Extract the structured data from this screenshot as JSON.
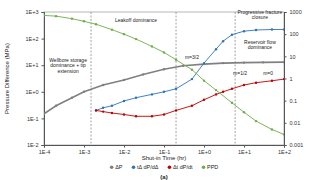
{
  "chart_data": {
    "type": "line",
    "x_label": "Shut-in Time (hr)",
    "y_label": "Pressure Difference (MPa)",
    "caption": "(a)",
    "log": true,
    "grid": false,
    "legend": "bottom",
    "xlim": [
      0.0001,
      100
    ],
    "xticks": [
      {
        "value": 0.0001,
        "label": "1E-4"
      },
      {
        "value": 0.001,
        "label": "1E-3"
      },
      {
        "value": 0.01,
        "label": "1E-2"
      },
      {
        "value": 0.1,
        "label": "1E-1"
      },
      {
        "value": 1,
        "label": "1E+0"
      },
      {
        "value": 10,
        "label": "1E+1"
      },
      {
        "value": 100,
        "label": "1E+2"
      }
    ],
    "ylim": [
      0.01,
      1000
    ],
    "yticks": [
      {
        "value": 0.01,
        "label": "1E-2"
      },
      {
        "value": 0.1,
        "label": "1E-1"
      },
      {
        "value": 1,
        "label": "1E+0"
      },
      {
        "value": 10,
        "label": "1E+1"
      },
      {
        "value": 100,
        "label": "1E+2"
      },
      {
        "value": 1000,
        "label": "1E+3"
      }
    ],
    "y2lim": [
      0.001,
      1000
    ],
    "y2ticks": [
      0.001,
      0.01,
      0.1,
      1,
      10,
      100,
      1000
    ],
    "vlines": [
      0.0015,
      0.2,
      6
    ],
    "annotations": [
      {
        "text": "Wellbore storage dominance + tip extension",
        "x": 0.0004,
        "y": 10
      },
      {
        "text": "Leakoff dominance",
        "x": 0.02,
        "y": 500
      },
      {
        "text": "Progressive fracture closure",
        "x": 25,
        "y": 800
      },
      {
        "text": "Reservoir flow dominance",
        "x": 25,
        "y": 60
      },
      {
        "text": "m=3/2",
        "x": 0.5,
        "y": 20
      },
      {
        "text": "m=1/2",
        "x": 8,
        "y": 5
      },
      {
        "text": "m=0",
        "x": 40,
        "y": 5
      }
    ],
    "series": [
      {
        "name": "ΔP",
        "color": "#808080",
        "marker": "circle",
        "line_style": "solid",
        "x": [
          0.0001,
          0.0002,
          0.0005,
          0.001,
          0.003,
          0.01,
          0.03,
          0.1,
          0.3,
          1,
          3,
          10,
          30,
          100
        ],
        "values": [
          0.15,
          0.3,
          0.6,
          1.0,
          1.8,
          2.8,
          4.5,
          7,
          9.5,
          11,
          12,
          12.5,
          12.8,
          13
        ]
      },
      {
        "name": "tΔ dP/dΔ",
        "color": "#2e75b6",
        "marker": "circle",
        "line_style": "solid",
        "x": [
          0.002,
          0.003,
          0.005,
          0.01,
          0.02,
          0.05,
          0.1,
          0.2,
          0.5,
          1,
          2,
          3,
          5,
          10,
          20,
          50,
          100
        ],
        "values": [
          0.2,
          0.25,
          0.3,
          0.45,
          0.6,
          0.8,
          1.0,
          1.3,
          3,
          12,
          40,
          80,
          140,
          190,
          210,
          220,
          220
        ]
      },
      {
        "name": "Δt dP/dt",
        "color": "#c00000",
        "marker": "circle",
        "line_style": "solid",
        "x": [
          0.002,
          0.003,
          0.005,
          0.01,
          0.02,
          0.05,
          0.1,
          0.2,
          0.5,
          1,
          2,
          3,
          5,
          10,
          20,
          50,
          100
        ],
        "values": [
          0.2,
          0.18,
          0.16,
          0.14,
          0.12,
          0.12,
          0.14,
          0.2,
          0.3,
          0.5,
          0.8,
          1.0,
          1.3,
          1.8,
          2.2,
          2.6,
          3
        ]
      },
      {
        "name": "PPD",
        "color": "#70ad47",
        "marker": "circle",
        "line_style": "solid",
        "axis": "y2",
        "x": [
          0.0001,
          0.0002,
          0.0005,
          0.001,
          0.002,
          0.005,
          0.01,
          0.02,
          0.05,
          0.1,
          0.2,
          0.5,
          1,
          2,
          5,
          10,
          20,
          50,
          100
        ],
        "values": [
          700,
          650,
          500,
          380,
          280,
          160,
          100,
          60,
          28,
          15,
          7,
          2.5,
          0.8,
          0.3,
          0.08,
          0.03,
          0.012,
          0.005,
          0.003
        ]
      }
    ]
  }
}
